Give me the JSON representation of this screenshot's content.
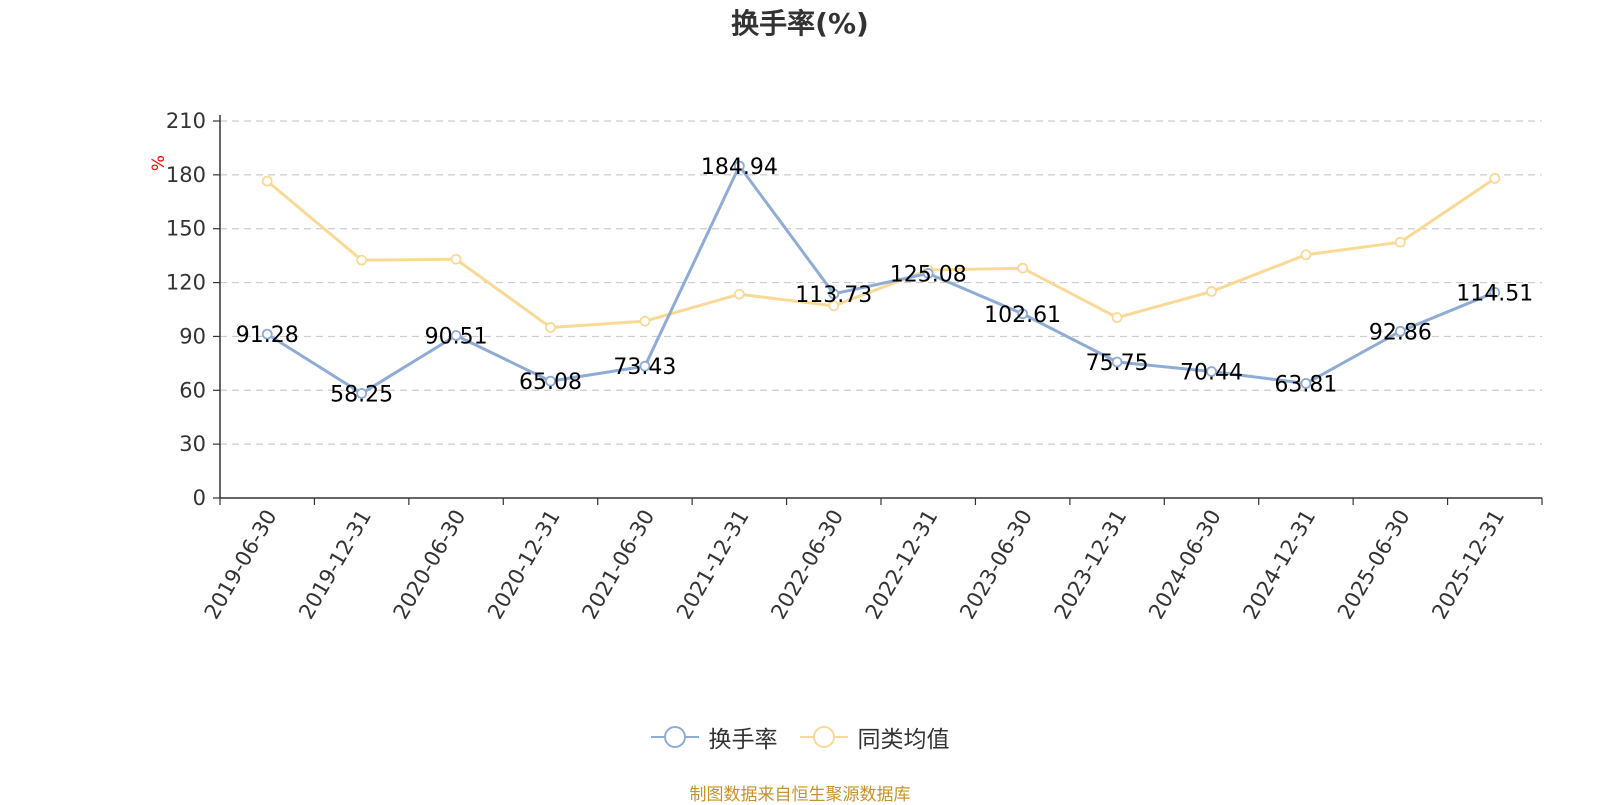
{
  "title": "换手率(%)",
  "source_note": "制图数据来自恒生聚源数据库",
  "colors": {
    "series1": "#8eacd6",
    "series2": "#fad996",
    "unit": "#ff0000",
    "grid": "#cccccc",
    "axis": "#333333",
    "source": "#c8922a"
  },
  "chart_data": {
    "type": "line",
    "title": "换手率(%)",
    "ylabel": "%",
    "ylim": [
      0,
      210
    ],
    "yticks": [
      0,
      30,
      60,
      90,
      120,
      150,
      180,
      210
    ],
    "grid": true,
    "legend_position": "bottom",
    "categories": [
      "2019-06-30",
      "2019-12-31",
      "2020-06-30",
      "2020-12-31",
      "2021-06-30",
      "2021-12-31",
      "2022-06-30",
      "2022-12-31",
      "2023-06-30",
      "2023-12-31",
      "2024-06-30",
      "2024-12-31",
      "2025-06-30",
      "2025-12-31"
    ],
    "series": [
      {
        "name": "换手率",
        "values": [
          91.28,
          58.25,
          90.51,
          65.08,
          73.43,
          184.94,
          113.73,
          125.08,
          102.61,
          75.75,
          70.44,
          63.81,
          92.86,
          114.51
        ],
        "labels": [
          "91.28",
          "58.25",
          "90.51",
          "65.08",
          "73.43",
          "184.94",
          "113.73",
          "125.08",
          "102.61",
          "75.75",
          "70.44",
          "63.81",
          "92.86",
          "114.51"
        ]
      },
      {
        "name": "同类均值",
        "values": [
          176.5,
          132.5,
          133,
          95,
          98.5,
          113.5,
          107,
          127,
          128,
          100.5,
          115,
          135.5,
          142.5,
          178
        ]
      }
    ]
  }
}
